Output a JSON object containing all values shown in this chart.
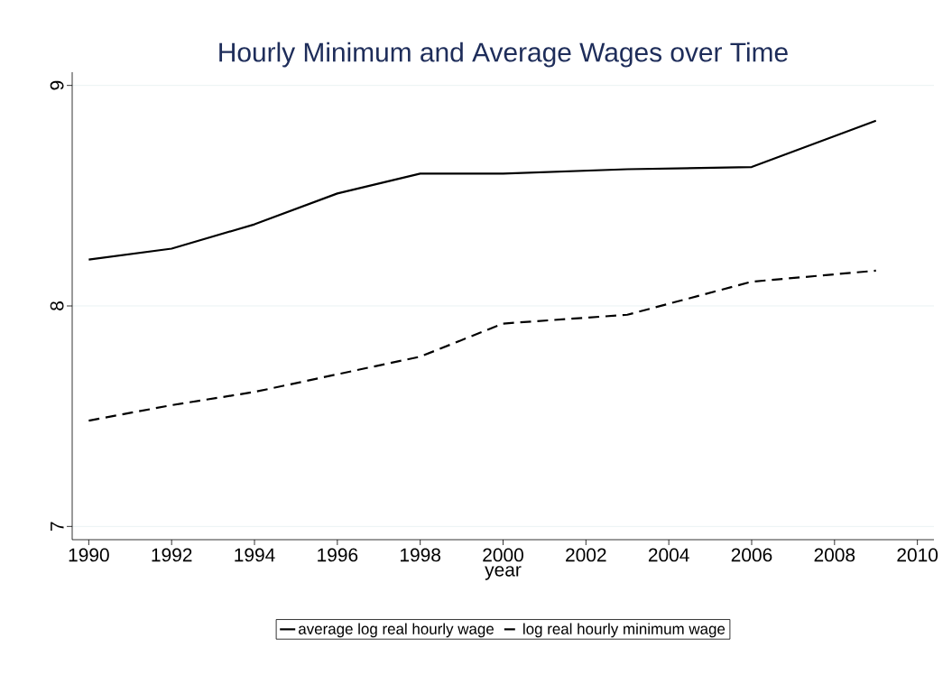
{
  "chart_data": {
    "type": "line",
    "title": "Hourly Minimum and Average Wages over Time",
    "xlabel": "year",
    "x": [
      1990,
      1992,
      1994,
      1996,
      1998,
      2000,
      2003,
      2006,
      2009
    ],
    "series": [
      {
        "name": "average log real hourly wage",
        "color": "#000000",
        "line_style": "solid",
        "values": [
          8.21,
          8.26,
          8.37,
          8.51,
          8.6,
          8.6,
          8.62,
          8.63,
          8.84
        ]
      },
      {
        "name": "log real hourly minimum wage",
        "color": "#000000",
        "line_style": "dashed",
        "values": [
          7.48,
          7.55,
          7.61,
          7.69,
          7.77,
          7.92,
          7.96,
          8.11,
          8.16
        ]
      }
    ],
    "xlim": [
      1989.6,
      2010.4
    ],
    "ylim": [
      6.94,
      9.06
    ],
    "xticks": [
      1990,
      1992,
      1994,
      1996,
      1998,
      2000,
      2002,
      2004,
      2006,
      2008,
      2010
    ],
    "yticks": [
      7,
      8,
      9
    ],
    "grid": "y",
    "legend": "bottom",
    "marker": "none"
  }
}
